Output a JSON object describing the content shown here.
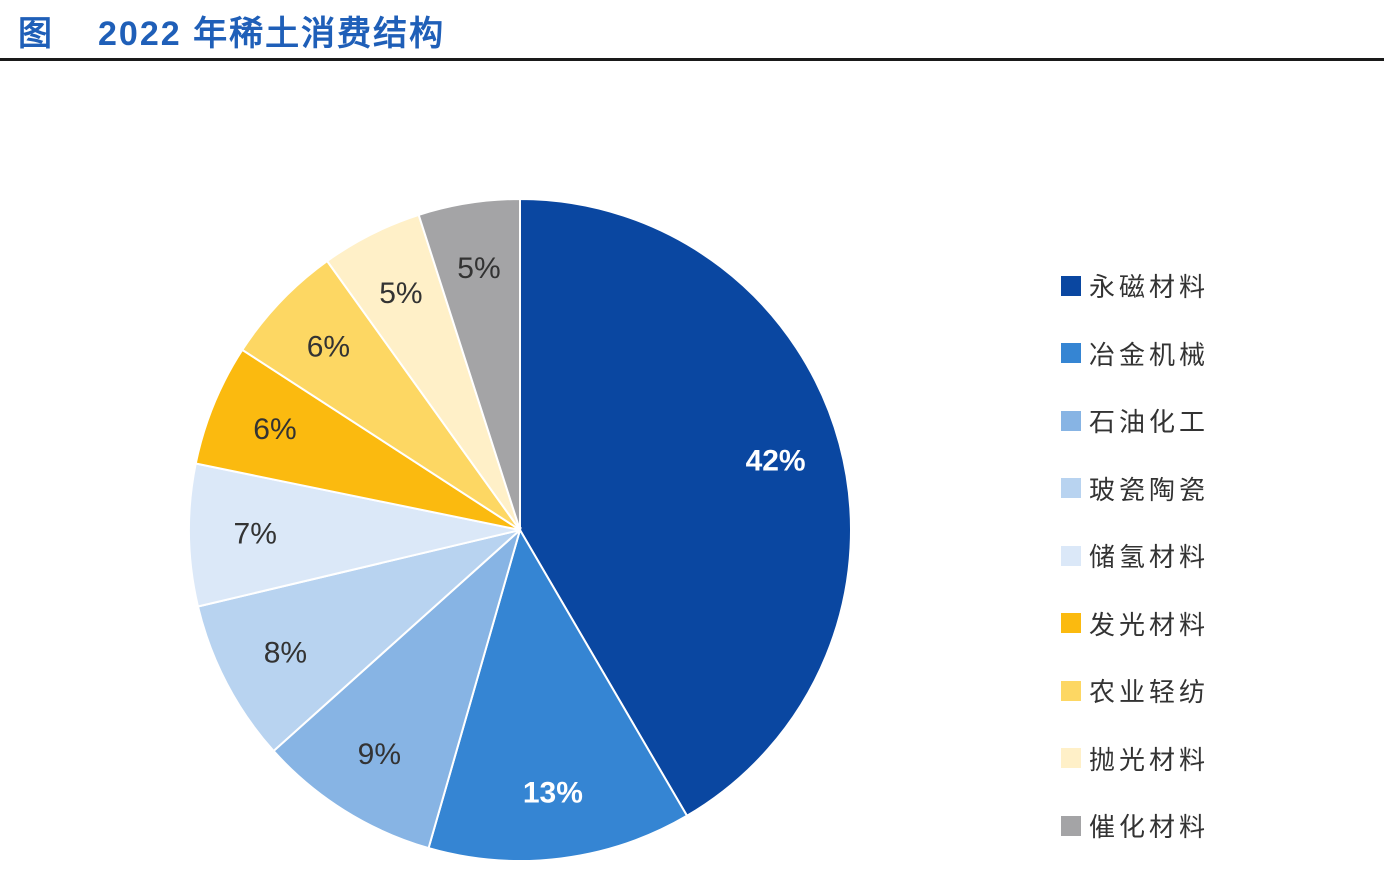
{
  "header": {
    "label": "图",
    "title": "2022 年稀土消费结构"
  },
  "chart_data": {
    "type": "pie",
    "title": "2022 年稀土消费结构",
    "start_angle_deg": 0,
    "direction": "clockwise",
    "slices": [
      {
        "name": "永磁材料",
        "value": 42,
        "label": "42%",
        "color": "#0a47a1",
        "label_color": "#ffffff"
      },
      {
        "name": "冶金机械",
        "value": 13,
        "label": "13%",
        "color": "#3585d3",
        "label_color": "#ffffff"
      },
      {
        "name": "石油化工",
        "value": 9,
        "label": "9%",
        "color": "#87b4e4",
        "label_color": "#333333"
      },
      {
        "name": "玻瓷陶瓷",
        "value": 8,
        "label": "8%",
        "color": "#b8d3f0",
        "label_color": "#333333"
      },
      {
        "name": "储氢材料",
        "value": 7,
        "label": "7%",
        "color": "#dbe8f8",
        "label_color": "#333333"
      },
      {
        "name": "发光材料",
        "value": 6,
        "label": "6%",
        "color": "#fbba0f",
        "label_color": "#333333"
      },
      {
        "name": "农业轻纺",
        "value": 6,
        "label": "6%",
        "color": "#fdd763",
        "label_color": "#333333"
      },
      {
        "name": "抛光材料",
        "value": 5,
        "label": "5%",
        "color": "#fff0c8",
        "label_color": "#333333"
      },
      {
        "name": "催化材料",
        "value": 5,
        "label": "5%",
        "color": "#a4a4a6",
        "label_color": "#333333"
      }
    ],
    "legend_position": "right"
  }
}
